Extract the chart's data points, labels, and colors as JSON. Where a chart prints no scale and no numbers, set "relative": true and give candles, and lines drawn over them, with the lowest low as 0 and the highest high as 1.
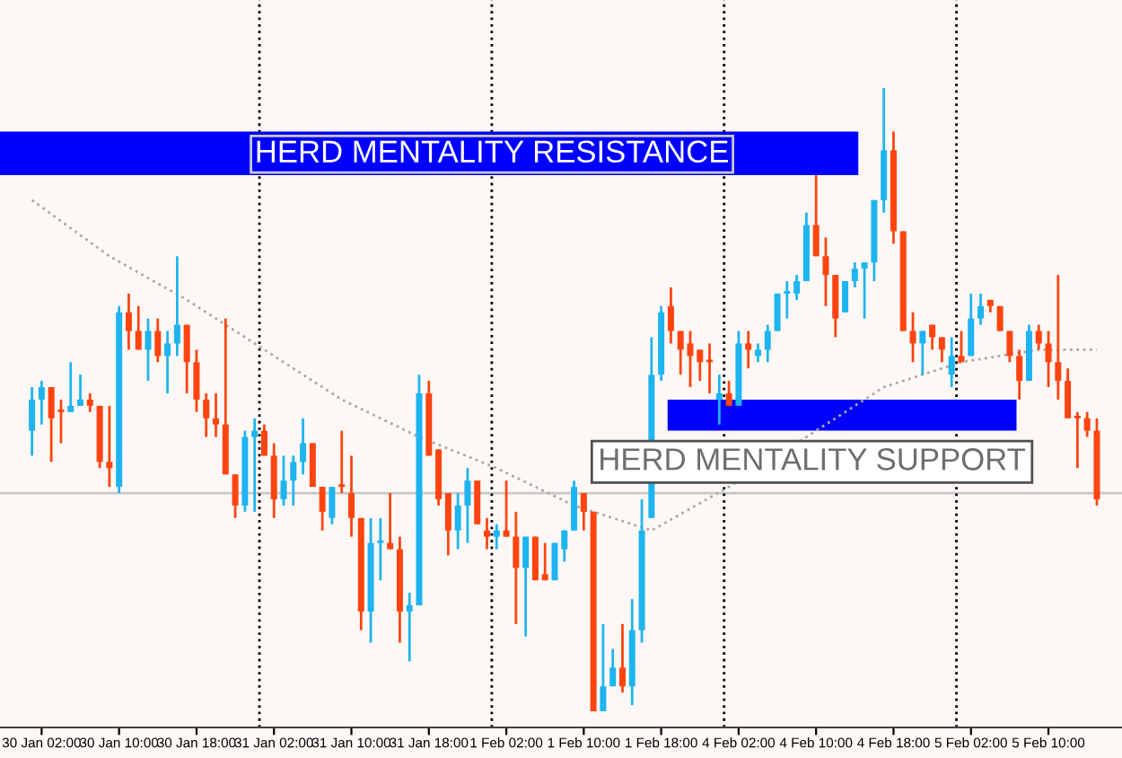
{
  "chart_data": {
    "type": "candlestick",
    "relative": true,
    "categories": [
      null,
      "30 Jan 02:00",
      null,
      null,
      null,
      null,
      null,
      null,
      null,
      "30 Jan 10:00",
      null,
      null,
      null,
      null,
      null,
      null,
      null,
      "30 Jan 18:00",
      null,
      null,
      null,
      null,
      null,
      null,
      null,
      "31 Jan 02:00",
      null,
      null,
      null,
      null,
      null,
      null,
      null,
      "31 Jan 10:00",
      null,
      null,
      null,
      null,
      null,
      null,
      null,
      "31 Jan 18:00",
      null,
      null,
      null,
      null,
      null,
      null,
      null,
      "1 Feb 02:00",
      null,
      null,
      null,
      null,
      null,
      null,
      null,
      "1 Feb 10:00",
      null,
      null,
      null,
      null,
      null,
      null,
      null,
      "1 Feb 18:00",
      null,
      null,
      null,
      null,
      null,
      null,
      null,
      "4 Feb 02:00",
      null,
      null,
      null,
      null,
      null,
      null,
      null,
      "4 Feb 10:00",
      null,
      null,
      null,
      null,
      null,
      null,
      null,
      "4 Feb 18:00",
      null,
      null,
      null,
      null,
      null,
      null,
      null,
      "5 Feb 02:00",
      null,
      null,
      null,
      null,
      null,
      null,
      null,
      "5 Feb 10:00",
      null,
      null,
      null,
      null,
      null
    ],
    "ohlc": [
      [
        0.45,
        0.52,
        0.41,
        0.5
      ],
      [
        0.5,
        0.53,
        0.46,
        0.52
      ],
      [
        0.52,
        0.52,
        0.4,
        0.47
      ],
      [
        0.48,
        0.5,
        0.43,
        0.48
      ],
      [
        0.48,
        0.56,
        0.48,
        0.49
      ],
      [
        0.49,
        0.54,
        0.49,
        0.5
      ],
      [
        0.5,
        0.51,
        0.48,
        0.49
      ],
      [
        0.49,
        0.49,
        0.39,
        0.4
      ],
      [
        0.4,
        0.49,
        0.36,
        0.39
      ],
      [
        0.36,
        0.65,
        0.35,
        0.64
      ],
      [
        0.64,
        0.67,
        0.58,
        0.61
      ],
      [
        0.61,
        0.65,
        0.58,
        0.58
      ],
      [
        0.58,
        0.63,
        0.53,
        0.61
      ],
      [
        0.61,
        0.63,
        0.56,
        0.57
      ],
      [
        0.57,
        0.61,
        0.51,
        0.59
      ],
      [
        0.59,
        0.73,
        0.57,
        0.62
      ],
      [
        0.62,
        0.62,
        0.51,
        0.56
      ],
      [
        0.56,
        0.58,
        0.48,
        0.5
      ],
      [
        0.5,
        0.51,
        0.44,
        0.47
      ],
      [
        0.47,
        0.51,
        0.44,
        0.46
      ],
      [
        0.46,
        0.63,
        0.38,
        0.38
      ],
      [
        0.38,
        0.38,
        0.31,
        0.33
      ],
      [
        0.33,
        0.45,
        0.32,
        0.44
      ],
      [
        0.44,
        0.47,
        0.32,
        0.45
      ],
      [
        0.45,
        0.46,
        0.41,
        0.41
      ],
      [
        0.41,
        0.43,
        0.31,
        0.34
      ],
      [
        0.34,
        0.41,
        0.33,
        0.37
      ],
      [
        0.37,
        0.41,
        0.33,
        0.4
      ],
      [
        0.4,
        0.47,
        0.38,
        0.43
      ],
      [
        0.43,
        0.43,
        0.36,
        0.36
      ],
      [
        0.36,
        0.36,
        0.29,
        0.32
      ],
      [
        0.31,
        0.36,
        0.3,
        0.36
      ],
      [
        0.36,
        0.45,
        0.35,
        0.36
      ],
      [
        0.35,
        0.41,
        0.28,
        0.31
      ],
      [
        0.31,
        0.31,
        0.13,
        0.16
      ],
      [
        0.16,
        0.31,
        0.11,
        0.27
      ],
      [
        0.27,
        0.31,
        0.21,
        0.27
      ],
      [
        0.27,
        0.35,
        0.26,
        0.26
      ],
      [
        0.26,
        0.28,
        0.11,
        0.16
      ],
      [
        0.16,
        0.19,
        0.08,
        0.17
      ],
      [
        0.17,
        0.54,
        0.17,
        0.51
      ],
      [
        0.51,
        0.53,
        0.41,
        0.41
      ],
      [
        0.42,
        0.42,
        0.33,
        0.34
      ],
      [
        0.35,
        0.35,
        0.25,
        0.29
      ],
      [
        0.29,
        0.35,
        0.26,
        0.33
      ],
      [
        0.33,
        0.39,
        0.27,
        0.37
      ],
      [
        0.37,
        0.37,
        0.3,
        0.3
      ],
      [
        0.29,
        0.31,
        0.26,
        0.28
      ],
      [
        0.28,
        0.3,
        0.26,
        0.29
      ],
      [
        0.29,
        0.37,
        0.28,
        0.28
      ],
      [
        0.28,
        0.32,
        0.14,
        0.23
      ],
      [
        0.23,
        0.28,
        0.12,
        0.28
      ],
      [
        0.28,
        0.28,
        0.21,
        0.21
      ],
      [
        0.22,
        0.27,
        0.21,
        0.21
      ],
      [
        0.21,
        0.27,
        0.21,
        0.27
      ],
      [
        0.26,
        0.29,
        0.24,
        0.29
      ],
      [
        0.29,
        0.37,
        0.29,
        0.36
      ],
      [
        0.35,
        0.35,
        0.29,
        0.32
      ],
      [
        0.32,
        0.32,
        0.0,
        0.0
      ],
      [
        0.0,
        0.14,
        0.0,
        0.04
      ],
      [
        0.04,
        0.1,
        0.04,
        0.07
      ],
      [
        0.07,
        0.14,
        0.03,
        0.04
      ],
      [
        0.04,
        0.18,
        0.01,
        0.13
      ],
      [
        0.13,
        0.34,
        0.11,
        0.29
      ],
      [
        0.31,
        0.6,
        0.31,
        0.54
      ],
      [
        0.54,
        0.65,
        0.53,
        0.64
      ],
      [
        0.65,
        0.68,
        0.59,
        0.61
      ],
      [
        0.61,
        0.61,
        0.54,
        0.58
      ],
      [
        0.59,
        0.61,
        0.52,
        0.57
      ],
      [
        0.58,
        0.58,
        0.53,
        0.56
      ],
      [
        0.56,
        0.59,
        0.51,
        0.56
      ],
      [
        0.5,
        0.54,
        0.46,
        0.51
      ],
      [
        0.51,
        0.53,
        0.49,
        0.49
      ],
      [
        0.49,
        0.61,
        0.49,
        0.59
      ],
      [
        0.59,
        0.61,
        0.55,
        0.58
      ],
      [
        0.57,
        0.59,
        0.56,
        0.58
      ],
      [
        0.58,
        0.62,
        0.56,
        0.61
      ],
      [
        0.61,
        0.67,
        0.61,
        0.67
      ],
      [
        0.67,
        0.69,
        0.63,
        0.67
      ],
      [
        0.67,
        0.7,
        0.66,
        0.69
      ],
      [
        0.69,
        0.8,
        0.69,
        0.78
      ],
      [
        0.78,
        0.86,
        0.73,
        0.73
      ],
      [
        0.73,
        0.76,
        0.65,
        0.7
      ],
      [
        0.7,
        0.7,
        0.6,
        0.63
      ],
      [
        0.64,
        0.69,
        0.64,
        0.69
      ],
      [
        0.69,
        0.72,
        0.68,
        0.71
      ],
      [
        0.71,
        0.72,
        0.63,
        0.72
      ],
      [
        0.72,
        0.82,
        0.69,
        0.82
      ],
      [
        0.82,
        1.0,
        0.8,
        0.9
      ],
      [
        0.9,
        0.93,
        0.75,
        0.77
      ],
      [
        0.77,
        0.77,
        0.61,
        0.61
      ],
      [
        0.61,
        0.64,
        0.56,
        0.59
      ],
      [
        0.59,
        0.61,
        0.54,
        0.61
      ],
      [
        0.62,
        0.62,
        0.58,
        0.6
      ],
      [
        0.6,
        0.6,
        0.56,
        0.58
      ],
      [
        0.54,
        0.6,
        0.52,
        0.57
      ],
      [
        0.57,
        0.61,
        0.56,
        0.56
      ],
      [
        0.57,
        0.67,
        0.57,
        0.63
      ],
      [
        0.63,
        0.67,
        0.62,
        0.65
      ],
      [
        0.66,
        0.66,
        0.64,
        0.65
      ],
      [
        0.65,
        0.65,
        0.61,
        0.61
      ],
      [
        0.61,
        0.61,
        0.56,
        0.57
      ],
      [
        0.57,
        0.58,
        0.5,
        0.53
      ],
      [
        0.53,
        0.62,
        0.53,
        0.61
      ],
      [
        0.61,
        0.62,
        0.58,
        0.59
      ],
      [
        0.59,
        0.61,
        0.52,
        0.56
      ],
      [
        0.56,
        0.7,
        0.5,
        0.53
      ],
      [
        0.53,
        0.55,
        0.47,
        0.47
      ],
      [
        0.47,
        0.48,
        0.39,
        0.47
      ],
      [
        0.47,
        0.48,
        0.44,
        0.45
      ],
      [
        0.45,
        0.47,
        0.33,
        0.34
      ]
    ],
    "colors": [
      "#1eb4f0",
      "#1eb4f0",
      "#ff4410",
      "#ff4410",
      "#1eb4f0",
      "#1eb4f0",
      "#ff4410",
      "#ff4410",
      "#ff4410",
      "#1eb4f0",
      "#ff4410",
      "#ff4410",
      "#1eb4f0",
      "#ff4410",
      "#1eb4f0",
      "#1eb4f0",
      "#ff4410",
      "#ff4410",
      "#ff4410",
      "#ff4410",
      "#ff4410",
      "#ff4410",
      "#1eb4f0",
      "#1eb4f0",
      "#ff4410",
      "#ff4410",
      "#1eb4f0",
      "#1eb4f0",
      "#1eb4f0",
      "#ff4410",
      "#ff4410",
      "#1eb4f0",
      "#ff4410",
      "#ff4410",
      "#ff4410",
      "#1eb4f0",
      "#1eb4f0",
      "#ff4410",
      "#ff4410",
      "#1eb4f0",
      "#1eb4f0",
      "#ff4410",
      "#ff4410",
      "#ff4410",
      "#1eb4f0",
      "#1eb4f0",
      "#ff4410",
      "#ff4410",
      "#1eb4f0",
      "#ff4410",
      "#ff4410",
      "#1eb4f0",
      "#ff4410",
      "#ff4410",
      "#1eb4f0",
      "#1eb4f0",
      "#1eb4f0",
      "#ff4410",
      "#ff4410",
      "#1eb4f0",
      "#1eb4f0",
      "#ff4410",
      "#1eb4f0",
      "#1eb4f0",
      "#1eb4f0",
      "#1eb4f0",
      "#ff4410",
      "#ff4410",
      "#ff4410",
      "#ff4410",
      "#ff4410",
      "#1eb4f0",
      "#ff4410",
      "#1eb4f0",
      "#ff4410",
      "#1eb4f0",
      "#1eb4f0",
      "#1eb4f0",
      "#1eb4f0",
      "#1eb4f0",
      "#1eb4f0",
      "#ff4410",
      "#ff4410",
      "#ff4410",
      "#1eb4f0",
      "#1eb4f0",
      "#1eb4f0",
      "#1eb4f0",
      "#1eb4f0",
      "#ff4410",
      "#ff4410",
      "#ff4410",
      "#1eb4f0",
      "#ff4410",
      "#ff4410",
      "#1eb4f0",
      "#ff4410",
      "#1eb4f0",
      "#1eb4f0",
      "#ff4410",
      "#ff4410",
      "#ff4410",
      "#ff4410",
      "#1eb4f0",
      "#ff4410",
      "#ff4410",
      "#ff4410",
      "#ff4410",
      "#ff4410",
      "#ff4410",
      "#ff4410"
    ],
    "series": [
      {
        "type": "line",
        "color": "#a8a8a8",
        "line_style": "dotted",
        "values": [
          0.82,
          null,
          null,
          null,
          null,
          null,
          null,
          null,
          0.73,
          null,
          null,
          null,
          null,
          null,
          null,
          null,
          0.66,
          null,
          null,
          null,
          null,
          null,
          null,
          null,
          0.58,
          null,
          null,
          null,
          null,
          null,
          null,
          null,
          0.5,
          null,
          null,
          null,
          null,
          null,
          null,
          null,
          0.44,
          null,
          null,
          null,
          null,
          null,
          null,
          null,
          0.39,
          null,
          null,
          null,
          null,
          null,
          null,
          null,
          0.33,
          null,
          null,
          null,
          null,
          null,
          null,
          null,
          0.29,
          null,
          null,
          null,
          null,
          null,
          null,
          null,
          0.36,
          null,
          null,
          null,
          null,
          null,
          null,
          null,
          0.44,
          null,
          null,
          null,
          null,
          null,
          null,
          null,
          0.52,
          null,
          null,
          null,
          null,
          null,
          null,
          null,
          0.56,
          null,
          null,
          null,
          null,
          null,
          null,
          null,
          0.58,
          null,
          null,
          null,
          null,
          null,
          0.58
        ]
      }
    ],
    "bands": [
      {
        "axis": "y",
        "from": 0.86,
        "to": 0.93,
        "color": "#0000ff"
      },
      {
        "axis": "y",
        "from": 0.45,
        "to": 0.5,
        "color": "#0000ff"
      }
    ],
    "ref_lines": [
      {
        "axis": "y",
        "value": 0.35,
        "color": "#c8c8c8",
        "line_style": "solid"
      }
    ],
    "annotations": [
      "HERD MENTALITY RESISTANCE",
      "HERD MENTALITY SUPPORT"
    ],
    "grid": false,
    "legend": false
  }
}
